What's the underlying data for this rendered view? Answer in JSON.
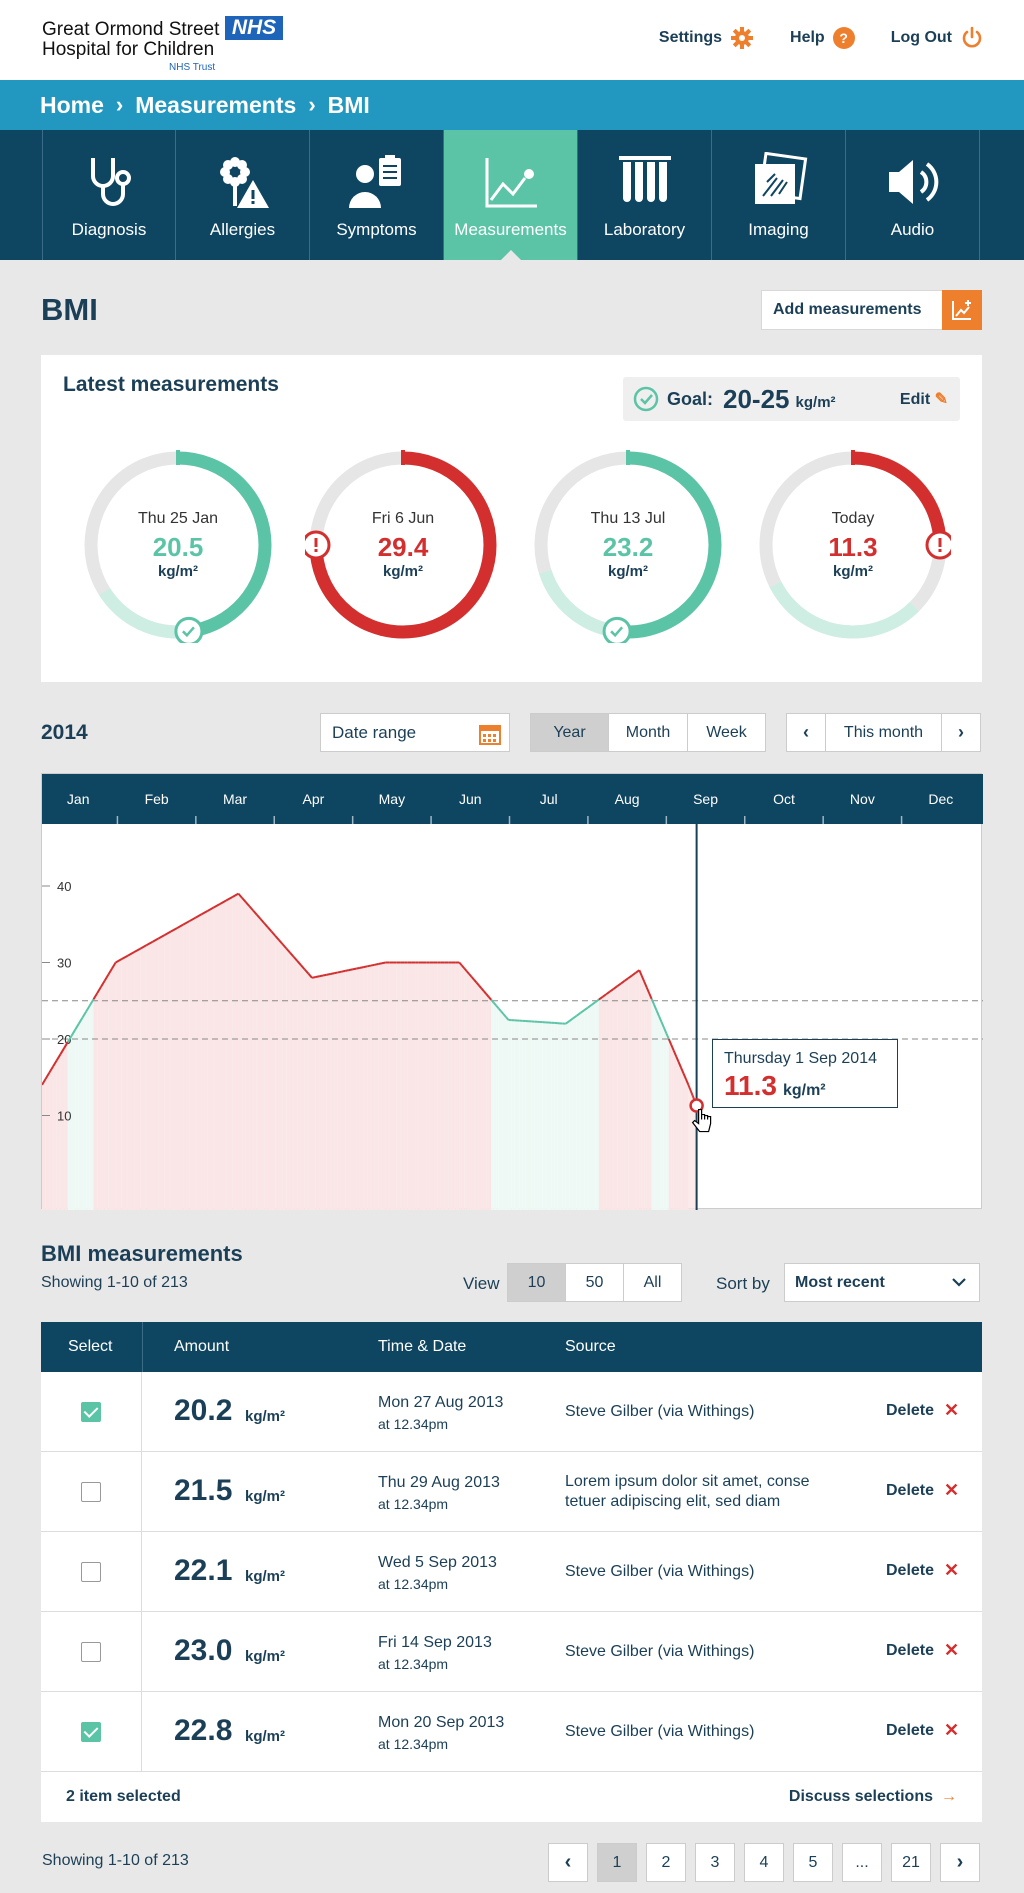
{
  "header": {
    "logo_line1": "Great Ormond Street",
    "logo_line2": "Hospital for Children",
    "logo_nhs": "NHS",
    "logo_trust": "NHS Trust",
    "settings": "Settings",
    "help": "Help",
    "help_glyph": "?",
    "logout": "Log Out"
  },
  "breadcrumb": [
    "Home",
    "Measurements",
    "BMI"
  ],
  "nav": [
    {
      "label": "Diagnosis",
      "icon": "stethoscope-icon"
    },
    {
      "label": "Allergies",
      "icon": "allergy-flower-icon"
    },
    {
      "label": "Symptoms",
      "icon": "symptoms-person-icon"
    },
    {
      "label": "Measurements",
      "icon": "chart-line-icon",
      "active": true
    },
    {
      "label": "Laboratory",
      "icon": "test-tubes-icon"
    },
    {
      "label": "Imaging",
      "icon": "xray-image-icon"
    },
    {
      "label": "Audio",
      "icon": "speaker-icon"
    }
  ],
  "page_title": "BMI",
  "add_button": "Add measurements",
  "latest": {
    "title": "Latest measurements",
    "goal_label": "Goal:",
    "goal_value": "20-25",
    "goal_unit": "kg/m²",
    "edit": "Edit",
    "gauges": [
      {
        "date": "Thu 25 Jan",
        "value": "20.5",
        "unit": "kg/m²",
        "status": "ok",
        "fraction": 0.48
      },
      {
        "date": "Fri 6 Jun",
        "value": "29.4",
        "unit": "kg/m²",
        "status": "alert",
        "fraction": 0.75
      },
      {
        "date": "Thu 13 Jul",
        "value": "23.2",
        "unit": "kg/m²",
        "status": "ok",
        "fraction": 0.52
      },
      {
        "date": "Today",
        "value": "11.3",
        "unit": "kg/m²",
        "status": "alert",
        "fraction": 0.25
      }
    ]
  },
  "colors": {
    "ok": "#5cc4a6",
    "alert": "#d32f2f",
    "track": "#e6e6e6",
    "okTrack": "#cfeee3",
    "accent": "#ee7f2d",
    "navy": "#0e4560"
  },
  "period": {
    "year": "2014",
    "date_range": "Date range",
    "views": [
      "Year",
      "Month",
      "Week"
    ],
    "active_view": "Year",
    "current": "This month"
  },
  "chart_data": {
    "type": "line",
    "months": [
      "Jan",
      "Feb",
      "Mar",
      "Apr",
      "May",
      "Jun",
      "Jul",
      "Aug",
      "Sep",
      "Oct",
      "Nov",
      "Dec"
    ],
    "x": [
      0.0,
      0.9,
      2.4,
      3.3,
      4.2,
      5.1,
      5.7,
      6.4,
      7.3,
      7.9,
      8.0
    ],
    "y": [
      14,
      30,
      39,
      28,
      30,
      30,
      22.5,
      22,
      29,
      14,
      11.3
    ],
    "yticks": [
      10,
      20,
      30,
      40
    ],
    "ylim": [
      0,
      50
    ],
    "goal_band": [
      20,
      25
    ],
    "selected_x": 8.0,
    "tooltip_date": "Thursday 1 Sep 2014",
    "tooltip_value": "11.3",
    "tooltip_unit": "kg/m²"
  },
  "list": {
    "title": "BMI measurements",
    "showing": "Showing 1-10 of 213",
    "view_label": "View",
    "view_options": [
      "10",
      "50",
      "All"
    ],
    "view_active": "10",
    "sort_label": "Sort by",
    "sort_value": "Most recent",
    "columns": [
      "Select",
      "Amount",
      "Time & Date",
      "Source"
    ],
    "rows": [
      {
        "checked": true,
        "amount": "20.2",
        "unit": "kg/m²",
        "date": "Mon 27 Aug 2013",
        "time": "at 12.34pm",
        "source": "Steve Gilber (via Withings)",
        "delete": "Delete"
      },
      {
        "checked": false,
        "amount": "21.5",
        "unit": "kg/m²",
        "date": "Thu 29 Aug 2013",
        "time": "at 12.34pm",
        "source": "Lorem ipsum dolor sit amet, conse tetuer adipiscing elit, sed diam",
        "delete": "Delete"
      },
      {
        "checked": false,
        "amount": "22.1",
        "unit": "kg/m²",
        "date": "Wed 5 Sep 2013",
        "time": "at 12.34pm",
        "source": "Steve Gilber (via Withings)",
        "delete": "Delete"
      },
      {
        "checked": false,
        "amount": "23.0",
        "unit": "kg/m²",
        "date": "Fri 14 Sep 2013",
        "time": "at 12.34pm",
        "source": "Steve Gilber (via Withings)",
        "delete": "Delete"
      },
      {
        "checked": true,
        "amount": "22.8",
        "unit": "kg/m²",
        "date": "Mon 20 Sep 2013",
        "time": "at 12.34pm",
        "source": "Steve Gilber (via Withings)",
        "delete": "Delete"
      }
    ],
    "delete_glyph": "✕",
    "selected_count": "2 item selected",
    "discuss": "Discuss selections",
    "discuss_arrow": "→"
  },
  "pagination": {
    "showing": "Showing 1-10 of 213",
    "prev": "‹",
    "next": "›",
    "pages": [
      "1",
      "2",
      "3",
      "4",
      "5",
      "...",
      "21"
    ],
    "current": "1"
  }
}
